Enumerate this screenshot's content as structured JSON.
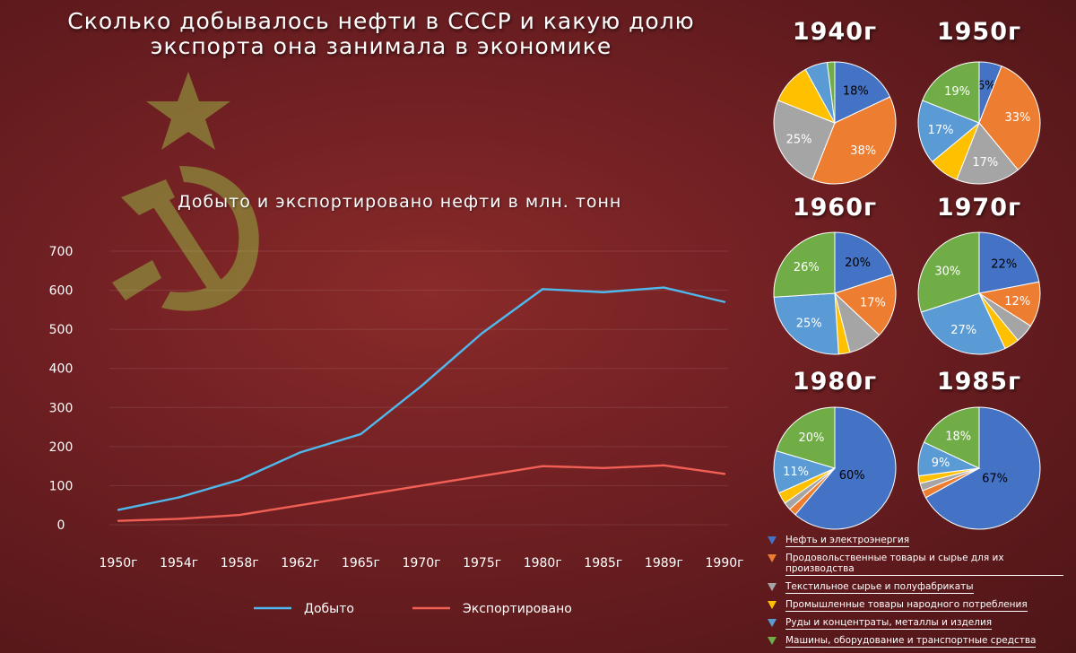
{
  "header": {
    "title_line1": "Сколько добывалось нефти в СССР и какую долю",
    "title_line2": "экспорта она занимала в экономике"
  },
  "colors": {
    "mined": "#4fb8ec",
    "exported": "#f25f55",
    "categories": [
      "#4472c4",
      "#ed7d31",
      "#a5a5a5",
      "#ffc000",
      "#5b9bd5",
      "#70ad47"
    ]
  },
  "chart_data": [
    {
      "type": "line",
      "title": "Добыто и экспортировано нефти в млн. тонн",
      "xlabel": "",
      "ylabel": "",
      "categories": [
        "1950г",
        "1954г",
        "1958г",
        "1962г",
        "1965г",
        "1970г",
        "1975г",
        "1980г",
        "1985г",
        "1989г",
        "1990г"
      ],
      "series": [
        {
          "name": "Добыто",
          "values": [
            38,
            70,
            115,
            185,
            232,
            355,
            490,
            603,
            595,
            607,
            570
          ]
        },
        {
          "name": "Экспортировано",
          "values": [
            10,
            15,
            25,
            50,
            75,
            100,
            125,
            150,
            145,
            152,
            130
          ]
        }
      ],
      "yticks": [
        "0",
        "100",
        "200",
        "300",
        "400",
        "500",
        "600",
        "700"
      ],
      "ylim": [
        0,
        700
      ],
      "grid": "horizontal",
      "legend_position": "bottom"
    },
    {
      "type": "pie",
      "legend": [
        "Нефть и электроэнергия",
        "Продовольственные товары и сырье для их производства",
        "Текстильное сырье и полуфабрикаты",
        "Промышленные товары народного потребления",
        "Руды и концентраты, металлы и изделия",
        "Машины, оборудование и транспортные средства"
      ],
      "pies": [
        {
          "title": "1940г",
          "values": [
            18,
            38,
            25,
            11,
            6,
            2
          ],
          "labels": [
            "18%",
            "38%",
            "25%",
            "",
            "",
            ""
          ]
        },
        {
          "title": "1950г",
          "values": [
            6,
            33,
            17,
            8,
            17,
            19
          ],
          "labels": [
            "6%",
            "33%",
            "17%",
            "",
            "17%",
            "19%"
          ]
        },
        {
          "title": "1960г",
          "values": [
            20,
            17,
            9,
            3,
            25,
            26
          ],
          "labels": [
            "20%",
            "17%",
            "",
            "",
            "25%",
            "26%"
          ]
        },
        {
          "title": "1970г",
          "values": [
            22,
            12,
            5,
            4,
            27,
            30
          ],
          "labels": [
            "22%",
            "12%",
            "",
            "",
            "27%",
            "30%"
          ]
        },
        {
          "title": "1980г",
          "values": [
            60,
            2,
            2,
            3,
            11,
            20
          ],
          "labels": [
            "60%",
            "",
            "",
            "",
            "11%",
            "20%"
          ]
        },
        {
          "title": "1985г",
          "values": [
            67,
            2,
            2,
            2,
            9,
            18
          ],
          "labels": [
            "67%",
            "",
            "",
            "",
            "9%",
            "18%"
          ]
        }
      ]
    }
  ]
}
